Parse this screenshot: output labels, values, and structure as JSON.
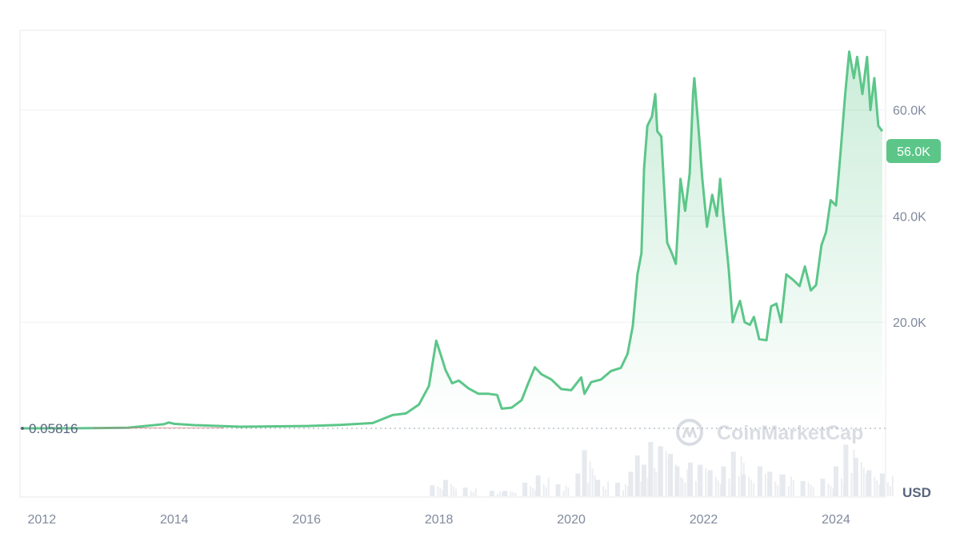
{
  "chart_data": {
    "type": "area",
    "currency": "USD",
    "watermark": "CoinMarketCap",
    "start_price_label": "0.05816",
    "current_price_label": "56.0K",
    "current_price": 56000,
    "ylim": [
      0,
      75000
    ],
    "y_ticks": [
      {
        "value": 20000,
        "label": "20.0K"
      },
      {
        "value": 40000,
        "label": "40.0K"
      },
      {
        "value": 60000,
        "label": "60.0K"
      }
    ],
    "xlim": [
      2011.67,
      2024.75
    ],
    "x_ticks": [
      {
        "value": 2012,
        "label": "2012"
      },
      {
        "value": 2014,
        "label": "2014"
      },
      {
        "value": 2016,
        "label": "2016"
      },
      {
        "value": 2018,
        "label": "2018"
      },
      {
        "value": 2020,
        "label": "2020"
      },
      {
        "value": 2022,
        "label": "2022"
      },
      {
        "value": 2024,
        "label": "2024"
      }
    ],
    "grid": true,
    "line_color": "#5cc689",
    "series": [
      {
        "x": [
          2011.7,
          2012.5,
          2013.3,
          2013.85,
          2013.92,
          2014.0,
          2014.3,
          2015.0,
          2016.0,
          2016.5,
          2017.0,
          2017.3,
          2017.5,
          2017.7,
          2017.85,
          2017.96,
          2018.05,
          2018.1,
          2018.2,
          2018.3,
          2018.45,
          2018.6,
          2018.75,
          2018.88,
          2018.95,
          2019.1,
          2019.25,
          2019.35,
          2019.45,
          2019.55,
          2019.7,
          2019.85,
          2020.0,
          2020.15,
          2020.2,
          2020.3,
          2020.45,
          2020.6,
          2020.75,
          2020.85,
          2020.93,
          2021.0,
          2021.06,
          2021.1,
          2021.15,
          2021.22,
          2021.27,
          2021.3,
          2021.36,
          2021.45,
          2021.52,
          2021.58,
          2021.65,
          2021.72,
          2021.79,
          2021.84,
          2021.86,
          2021.92,
          2021.98,
          2022.05,
          2022.13,
          2022.2,
          2022.25,
          2022.3,
          2022.38,
          2022.44,
          2022.49,
          2022.55,
          2022.62,
          2022.7,
          2022.76,
          2022.84,
          2022.95,
          2023.02,
          2023.1,
          2023.17,
          2023.25,
          2023.35,
          2023.45,
          2023.53,
          2023.62,
          2023.7,
          2023.78,
          2023.85,
          2023.92,
          2024.0,
          2024.07,
          2024.14,
          2024.2,
          2024.27,
          2024.32,
          2024.4,
          2024.47,
          2024.52,
          2024.58,
          2024.64,
          2024.7
        ],
        "y": [
          0.06,
          12,
          100,
          800,
          1100,
          850,
          600,
          300,
          430,
          650,
          1000,
          2500,
          2800,
          4500,
          8000,
          16500,
          13000,
          11000,
          8500,
          9000,
          7500,
          6500,
          6500,
          6300,
          3700,
          3900,
          5300,
          8500,
          11500,
          10200,
          9200,
          7400,
          7200,
          9600,
          6500,
          8700,
          9200,
          10800,
          11400,
          14000,
          19300,
          29000,
          33000,
          49000,
          57000,
          58800,
          63000,
          56000,
          55000,
          35000,
          33000,
          31000,
          47000,
          41000,
          48000,
          63000,
          66000,
          57000,
          47000,
          38000,
          44000,
          40000,
          47000,
          40000,
          30000,
          20000,
          22000,
          24000,
          20000,
          19500,
          21000,
          16800,
          16600,
          23000,
          23500,
          20000,
          29000,
          28000,
          26800,
          30500,
          26000,
          27000,
          34500,
          37000,
          43000,
          42000,
          52000,
          63000,
          71000,
          66000,
          70000,
          63000,
          70000,
          60000,
          66000,
          57000,
          56000
        ]
      }
    ],
    "volume": {
      "x": [
        2017.9,
        2018.1,
        2018.4,
        2018.8,
        2019.0,
        2019.3,
        2019.5,
        2019.8,
        2020.1,
        2020.2,
        2020.4,
        2020.7,
        2020.9,
        2021.0,
        2021.1,
        2021.2,
        2021.35,
        2021.5,
        2021.6,
        2021.8,
        2021.95,
        2022.1,
        2022.3,
        2022.45,
        2022.6,
        2022.85,
        2023.0,
        2023.2,
        2023.5,
        2023.8,
        2024.0,
        2024.15,
        2024.3,
        2024.5,
        2024.7
      ],
      "h": [
        0.2,
        0.3,
        0.16,
        0.1,
        0.1,
        0.25,
        0.38,
        0.22,
        0.42,
        0.85,
        0.3,
        0.25,
        0.45,
        0.75,
        0.58,
        1.0,
        0.92,
        0.78,
        0.55,
        0.62,
        0.58,
        0.48,
        0.55,
        0.82,
        0.4,
        0.55,
        0.45,
        0.4,
        0.28,
        0.32,
        0.55,
        0.95,
        0.7,
        0.48,
        0.42
      ]
    }
  }
}
